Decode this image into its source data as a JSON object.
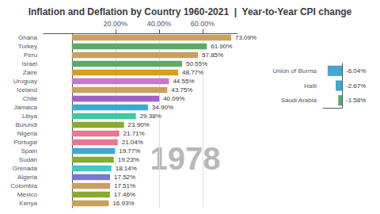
{
  "chart_data": [
    {
      "type": "bar",
      "title": "Inflation and Deflation by Country 1960-2021  |  Year-to-Year CPI change",
      "annotation": "1978",
      "orientation": "horizontal",
      "categories": [
        "Ghana",
        "Turkey",
        "Peru",
        "Israel",
        "Zaire",
        "Uruguay",
        "Iceland",
        "Chile",
        "Jamaica",
        "Libya",
        "Burundi",
        "Nigeria",
        "Portugal",
        "Spain",
        "Sudan",
        "Grenada",
        "Algeria",
        "Colombia",
        "Mexico",
        "Kenya"
      ],
      "values": [
        73.09,
        61.9,
        57.85,
        50.55,
        48.77,
        44.55,
        43.75,
        40.09,
        34.9,
        29.38,
        23.9,
        21.71,
        21.04,
        19.77,
        19.23,
        18.14,
        17.52,
        17.51,
        17.46,
        16.93
      ],
      "value_labels": [
        "73.09%",
        "61.90%",
        "57.85%",
        "50.55%",
        "48.77%",
        "44.55%",
        "43.75%",
        "40.09%",
        "34.90%",
        "29.38%",
        "23.90%",
        "21.71%",
        "21.04%",
        "19.77%",
        "19.23%",
        "18.14%",
        "17.52%",
        "17.51%",
        "17.46%",
        "16.93%"
      ],
      "colors": [
        "#c8a060",
        "#5aaa6a",
        "#c8a060",
        "#5aaa6a",
        "#d4a020",
        "#c878c8",
        "#c8a060",
        "#a060c8",
        "#40a8d0",
        "#40c8a0",
        "#88aa30",
        "#e87890",
        "#e87890",
        "#40a8d0",
        "#88aa30",
        "#40c8c8",
        "#7878d0",
        "#c8a060",
        "#88aa30",
        "#c8a060"
      ],
      "data_labels": true,
      "xlim": [
        -13,
        76
      ],
      "xticks": [
        {
          "value": 20,
          "label": "20.00%"
        },
        {
          "value": 40,
          "label": "40.00%"
        },
        {
          "value": 60,
          "label": "60.00%"
        }
      ],
      "grid": true
    },
    {
      "type": "bar",
      "orientation": "horizontal",
      "categories": [
        "Union of Burma",
        "Haiti",
        "Saudi Arabia"
      ],
      "values": [
        -6.04,
        -2.67,
        -1.58
      ],
      "value_labels": [
        "-6.04%",
        "-2.67%",
        "-1.58%"
      ],
      "colors": [
        "#40a8d0",
        "#40a8d0",
        "#5aaa6a"
      ],
      "data_labels": true,
      "xlim": [
        -8,
        0
      ],
      "tick_labels": "y",
      "grid": false
    }
  ]
}
